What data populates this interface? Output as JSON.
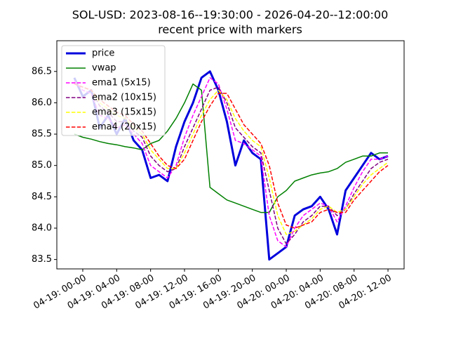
{
  "chart_data": {
    "type": "line",
    "title": "SOL-USD: 2023-08-16--19:30:00 - 2026-04-20--12:00:00",
    "subtitle": "recent price with markers",
    "x": [
      -1,
      0,
      1,
      2,
      3,
      4,
      5,
      6,
      7,
      8,
      9,
      10,
      11,
      12,
      13,
      14,
      15,
      16,
      17,
      18,
      19,
      20,
      21,
      22,
      23,
      24,
      25,
      26,
      27,
      28,
      29,
      30,
      31,
      32,
      33,
      34,
      35,
      36
    ],
    "xlim": [
      -3.06,
      37.9
    ],
    "xticks": [
      {
        "value": 0,
        "label": "04-19: 00-00"
      },
      {
        "value": 4,
        "label": "04-19: 04-00"
      },
      {
        "value": 8,
        "label": "04-19: 08-00"
      },
      {
        "value": 12,
        "label": "04-19: 12-00"
      },
      {
        "value": 16,
        "label": "04-19: 16-00"
      },
      {
        "value": 20,
        "label": "04-19: 20-00"
      },
      {
        "value": 24,
        "label": "04-20: 00-00"
      },
      {
        "value": 28,
        "label": "04-20: 04-00"
      },
      {
        "value": 32,
        "label": "04-20: 08-00"
      },
      {
        "value": 36,
        "label": "04-20: 12-00"
      }
    ],
    "ylim": [
      83.35,
      86.99
    ],
    "yticks": [
      83.5,
      {
        "value": 84,
        "label": "84.0"
      },
      84.5,
      {
        "value": 85,
        "label": "85.0"
      },
      85.5,
      {
        "value": 86,
        "label": "86.0"
      },
      86.5
    ],
    "legend": "upper left",
    "series": [
      {
        "name": "price",
        "color": "#0000dd",
        "linewidth": 3,
        "style": "solid",
        "values": [
          86.4,
          86.1,
          86.2,
          85.6,
          85.8,
          85.5,
          85.75,
          85.4,
          85.25,
          84.8,
          84.85,
          84.75,
          85.3,
          85.7,
          86.0,
          86.4,
          86.5,
          86.2,
          85.7,
          85.0,
          85.4,
          85.2,
          85.1,
          83.5,
          83.6,
          83.7,
          84.2,
          84.3,
          84.35,
          84.5,
          84.3,
          83.9,
          84.6,
          84.8,
          85.0,
          85.2,
          85.1,
          85.15
        ]
      },
      {
        "name": "vwap",
        "color": "#008000",
        "linewidth": 1.5,
        "style": "solid",
        "values": [
          85.5,
          85.45,
          85.42,
          85.38,
          85.35,
          85.33,
          85.3,
          85.28,
          85.25,
          85.35,
          85.4,
          85.55,
          85.75,
          86.0,
          86.3,
          86.2,
          84.65,
          84.55,
          84.45,
          84.4,
          84.35,
          84.3,
          84.25,
          84.25,
          84.5,
          84.6,
          84.75,
          84.8,
          84.85,
          84.88,
          84.9,
          84.95,
          85.05,
          85.1,
          85.15,
          85.15,
          85.2,
          85.2
        ]
      },
      {
        "name": "ema1 (5x15)",
        "color": "#ff00ff",
        "linewidth": 1.5,
        "style": "dashed",
        "values": [
          86.35,
          86.2,
          86.15,
          85.8,
          85.75,
          85.6,
          85.65,
          85.5,
          85.35,
          85.0,
          84.9,
          84.8,
          85.0,
          85.45,
          85.8,
          86.1,
          86.4,
          86.3,
          85.9,
          85.4,
          85.35,
          85.25,
          85.15,
          84.2,
          83.8,
          83.7,
          84.0,
          84.2,
          84.3,
          84.4,
          84.35,
          84.1,
          84.35,
          84.65,
          84.9,
          85.1,
          85.1,
          85.15
        ]
      },
      {
        "name": "ema2 (10x15)",
        "color": "#800080",
        "linewidth": 1.5,
        "style": "dashed",
        "values": [
          86.3,
          86.25,
          86.2,
          85.95,
          85.85,
          85.7,
          85.7,
          85.55,
          85.45,
          85.15,
          85.0,
          84.9,
          84.95,
          85.3,
          85.6,
          85.9,
          86.2,
          86.25,
          86.0,
          85.6,
          85.45,
          85.3,
          85.2,
          84.6,
          84.0,
          83.75,
          83.9,
          84.1,
          84.2,
          84.35,
          84.35,
          84.2,
          84.3,
          84.55,
          84.75,
          84.95,
          85.05,
          85.1
        ]
      },
      {
        "name": "ema3 (15x15)",
        "color": "#ffff00",
        "linewidth": 1.5,
        "style": "dashed",
        "values": [
          86.3,
          86.25,
          86.2,
          86.0,
          85.9,
          85.8,
          85.75,
          85.6,
          85.5,
          85.25,
          85.1,
          84.95,
          84.95,
          85.2,
          85.5,
          85.8,
          86.05,
          86.2,
          86.05,
          85.75,
          85.55,
          85.4,
          85.3,
          84.8,
          84.2,
          83.9,
          83.95,
          84.05,
          84.15,
          84.3,
          84.35,
          84.25,
          84.3,
          84.5,
          84.7,
          84.85,
          84.95,
          85.05
        ]
      },
      {
        "name": "ema4 (20x15)",
        "color": "#ff0000",
        "linewidth": 1.5,
        "style": "dashed",
        "values": [
          86.3,
          86.25,
          86.2,
          86.05,
          85.95,
          85.85,
          85.8,
          85.65,
          85.55,
          85.35,
          85.15,
          85.0,
          84.95,
          85.1,
          85.4,
          85.7,
          85.95,
          86.15,
          86.15,
          85.9,
          85.65,
          85.5,
          85.35,
          85.0,
          84.4,
          84.05,
          84.0,
          84.05,
          84.1,
          84.25,
          84.3,
          84.25,
          84.25,
          84.45,
          84.6,
          84.75,
          84.9,
          85.0
        ]
      }
    ]
  }
}
